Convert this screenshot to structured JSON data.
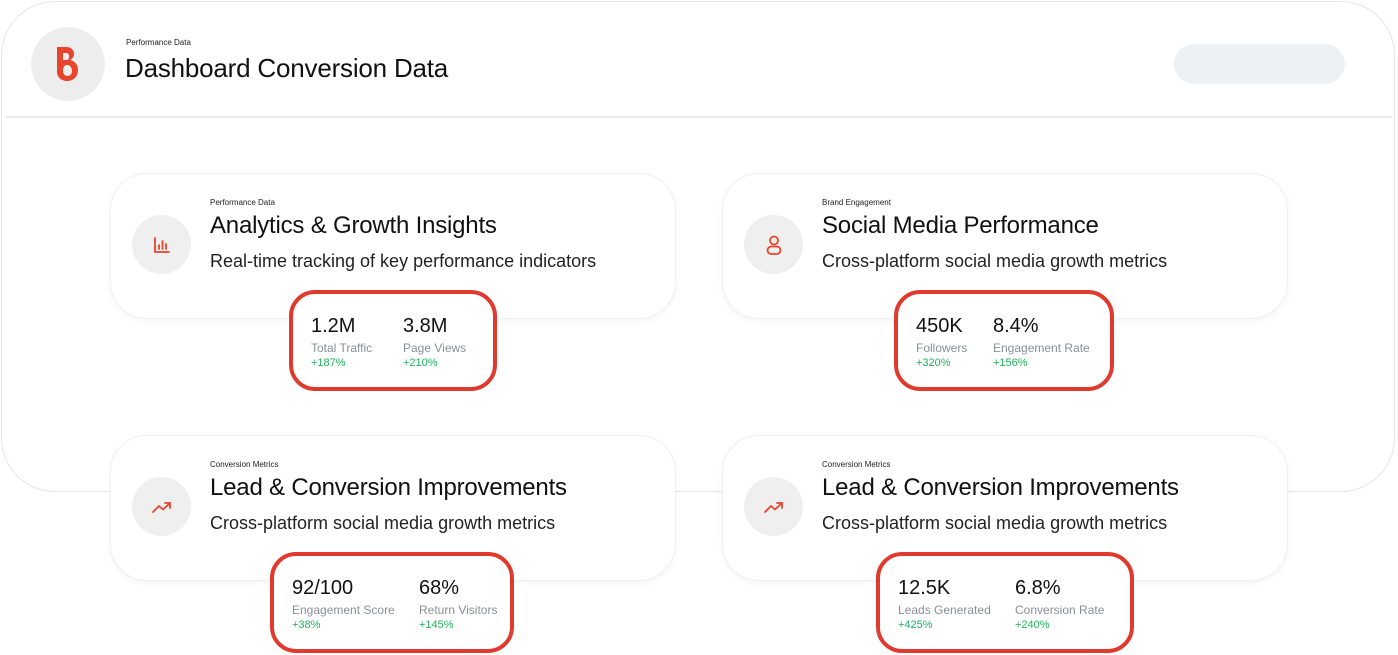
{
  "header": {
    "eyebrow": "Performance Data",
    "title": "Dashboard Conversion Data",
    "logo_icon": "brand-b-logo-icon",
    "accent": "#e8452c"
  },
  "cards": [
    {
      "eyebrow": "Performance Data",
      "title": "Analytics & Growth Insights",
      "description": "Real-time tracking of key performance indicators",
      "icon": "bar-chart-icon",
      "metrics": [
        {
          "value": "1.2M",
          "label": "Total Traffic",
          "change": "+187%"
        },
        {
          "value": "3.8M",
          "label": "Page Views",
          "change": "+210%"
        }
      ]
    },
    {
      "eyebrow": "Brand Engagement",
      "title": "Social Media Performance",
      "description": "Cross-platform social media growth metrics",
      "icon": "user-icon",
      "metrics": [
        {
          "value": "450K",
          "label": "Followers",
          "change": "+320%"
        },
        {
          "value": "8.4%",
          "label": "Engagement Rate",
          "change": "+156%"
        }
      ]
    },
    {
      "eyebrow": "Conversion Metrics",
      "title": "Lead & Conversion Improvements",
      "description": "Cross-platform social media growth metrics",
      "icon": "trending-up-icon",
      "metrics": [
        {
          "value": "92/100",
          "label": "Engagement Score",
          "change": "+38%"
        },
        {
          "value": "68%",
          "label": "Return Visitors",
          "change": "+145%"
        }
      ]
    },
    {
      "eyebrow": "Conversion Metrics",
      "title": "Lead & Conversion Improvements",
      "description": "Cross-platform social media growth metrics",
      "icon": "trending-up-icon",
      "metrics": [
        {
          "value": "12.5K",
          "label": "Leads Generated",
          "change": "+425%"
        },
        {
          "value": "6.8%",
          "label": "Conversion Rate",
          "change": "+240%"
        }
      ]
    }
  ],
  "colors": {
    "accent": "#e8452c",
    "highlight_border": "#e03a2e",
    "positive": "#1fb25a",
    "muted": "#8a8f96"
  }
}
